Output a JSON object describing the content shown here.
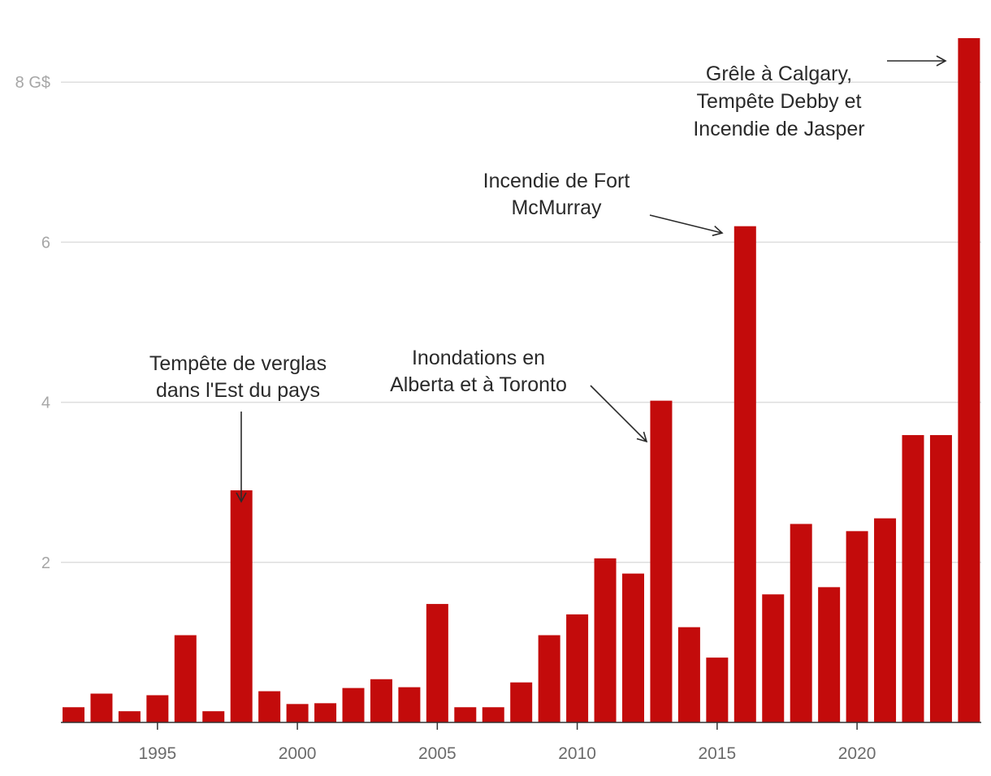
{
  "chart_data": {
    "type": "bar",
    "title": "",
    "xlabel": "",
    "ylabel": "",
    "ylim": [
      0,
      8.55
    ],
    "y_ticks": [
      {
        "value": 2,
        "label": "2"
      },
      {
        "value": 4,
        "label": "4"
      },
      {
        "value": 6,
        "label": "6"
      },
      {
        "value": 8,
        "label": "8 G$"
      }
    ],
    "x_ticks": [
      1995,
      2000,
      2005,
      2010,
      2015,
      2020
    ],
    "categories": [
      1992,
      1993,
      1994,
      1995,
      1996,
      1997,
      1998,
      1999,
      2000,
      2001,
      2002,
      2003,
      2004,
      2005,
      2006,
      2007,
      2008,
      2009,
      2010,
      2011,
      2012,
      2013,
      2014,
      2015,
      2016,
      2017,
      2018,
      2019,
      2020,
      2021,
      2022,
      2023,
      2024
    ],
    "values": [
      0.19,
      0.36,
      0.14,
      0.34,
      1.09,
      0.14,
      2.9,
      0.39,
      0.23,
      0.24,
      0.43,
      0.54,
      0.44,
      1.48,
      0.19,
      0.19,
      0.5,
      1.09,
      1.35,
      2.05,
      1.86,
      4.02,
      1.19,
      0.81,
      6.2,
      1.6,
      2.48,
      1.69,
      2.39,
      2.55,
      3.59,
      3.59,
      8.55
    ],
    "annotations": [
      {
        "year": 1998,
        "lines": [
          "Tempête de verglas",
          "dans l'Est du pays"
        ]
      },
      {
        "year": 2013,
        "lines": [
          "Inondations en",
          "Alberta et à Toronto"
        ]
      },
      {
        "year": 2016,
        "lines": [
          "Incendie de Fort",
          "McMurray"
        ]
      },
      {
        "year": 2024,
        "lines": [
          "Grêle à Calgary,",
          "Tempête Debby et",
          "Incendie de Jasper"
        ]
      }
    ]
  },
  "colors": {
    "bar": "#c30b0b",
    "grid": "#dedede",
    "axis": "#333333",
    "text": "#2a2a2a"
  }
}
